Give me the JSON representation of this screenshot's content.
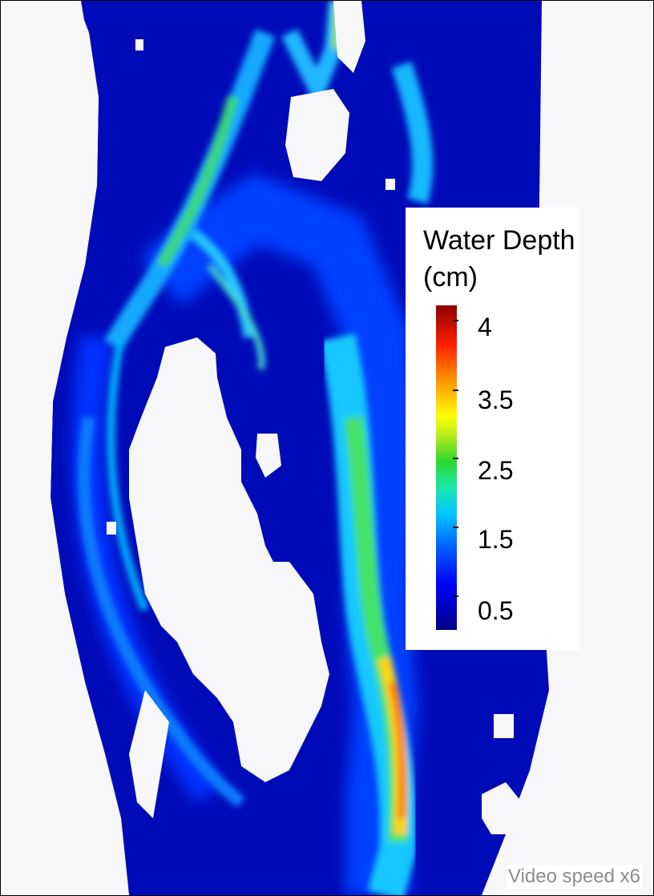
{
  "legend": {
    "title_line1": "Water Depth",
    "title_line2": "(cm)",
    "unit": "cm",
    "range": [
      0.2,
      4.1
    ],
    "ticks": [
      "4",
      "3.5",
      "2.5",
      "1.5",
      "0.5"
    ],
    "colormap": "jet"
  },
  "video_speed_label": "Video speed x6",
  "colors": {
    "shallow": "#000086",
    "deep": "#8e0000",
    "dry": "#ffffff",
    "frame": "#000000"
  }
}
